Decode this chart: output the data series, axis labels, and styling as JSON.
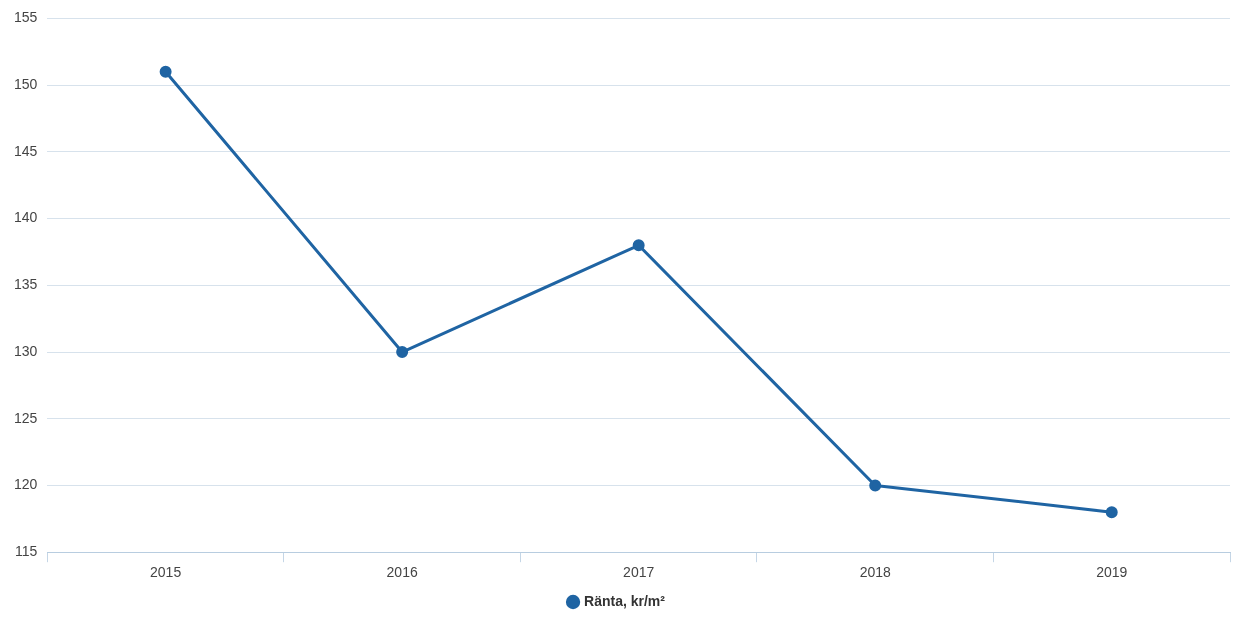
{
  "chart_data": {
    "type": "line",
    "categories": [
      "2015",
      "2016",
      "2017",
      "2018",
      "2019"
    ],
    "series": [
      {
        "name": "Ränta, kr/m²",
        "color": "#1f64a3",
        "values": [
          151,
          130,
          138,
          120,
          118
        ]
      }
    ],
    "ylim": [
      115,
      155
    ],
    "yticks": [
      115,
      120,
      125,
      130,
      135,
      140,
      145,
      150,
      155
    ],
    "grid": "y",
    "legend": "bottom",
    "marker": "circle",
    "line_style": "solid"
  }
}
